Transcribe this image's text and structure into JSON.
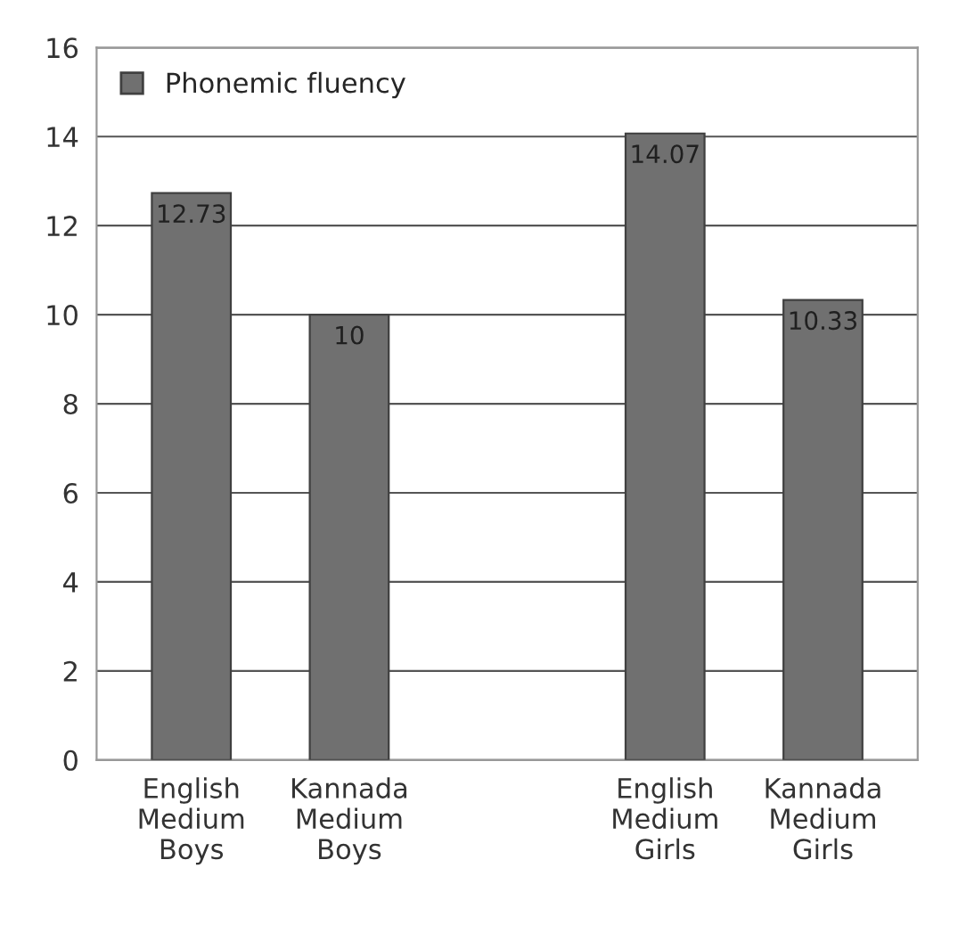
{
  "chart_data": {
    "type": "bar",
    "categories": [
      "English\nMedium\nBoys",
      "Kannada\nMedium\nBoys",
      null,
      "English\nMedium\nGirls",
      "Kannada\nMedium\nGirls"
    ],
    "series": [
      {
        "name": "Phonemic fluency",
        "color": "#707070",
        "values": [
          12.73,
          10,
          null,
          14.07,
          10.33
        ]
      }
    ],
    "ylim": [
      0,
      16
    ],
    "yticks": [
      0,
      2,
      4,
      6,
      8,
      10,
      12,
      14,
      16
    ],
    "grid": "y",
    "legend": "top left",
    "data_labels": true
  }
}
